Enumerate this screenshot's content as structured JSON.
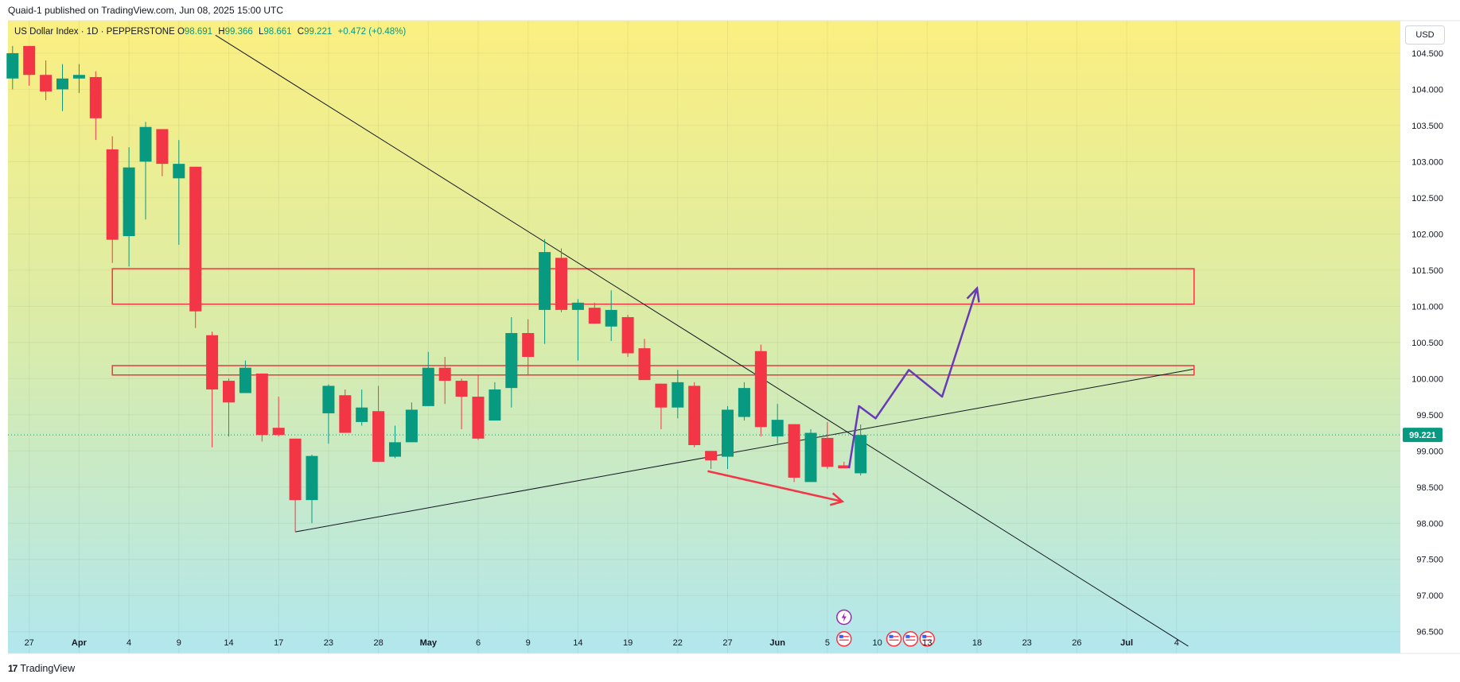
{
  "publication": "Quaid-1 published on TradingView.com, Jun 08, 2025 15:00 UTC",
  "header": {
    "symbol": "US Dollar Index · 1D · PEPPERSTONE",
    "open_label": "O",
    "open": "98.691",
    "high_label": "H",
    "high": "99.366",
    "low_label": "L",
    "low": "98.661",
    "close_label": "C",
    "close": "99.221",
    "change": "+0.472 (+0.48%)"
  },
  "currency": "USD",
  "footer": {
    "logo": "17",
    "brand": "TradingView"
  },
  "colors": {
    "up": "#089981",
    "down": "#f23645",
    "gradient_top": "#fbef80",
    "gradient_mid": "#d9ecaa",
    "gradient_bottom": "#b2e7ee",
    "zone": "#f23645",
    "projection": "#673ab7",
    "price_tag": "#089981"
  },
  "chart_data": {
    "type": "candlestick",
    "ylim": [
      96.2,
      104.95
    ],
    "y_ticks": [
      "104.500",
      "104.000",
      "103.500",
      "103.000",
      "102.500",
      "102.000",
      "101.500",
      "101.000",
      "100.500",
      "100.000",
      "99.500",
      "99.000",
      "98.500",
      "98.000",
      "97.500",
      "97.000",
      "96.500"
    ],
    "x_tick_labels": [
      {
        "i": 1,
        "label": "27"
      },
      {
        "i": 4,
        "label": "Apr"
      },
      {
        "i": 7,
        "label": "4"
      },
      {
        "i": 10,
        "label": "9"
      },
      {
        "i": 13,
        "label": "14"
      },
      {
        "i": 16,
        "label": "17"
      },
      {
        "i": 19,
        "label": "23"
      },
      {
        "i": 22,
        "label": "28"
      },
      {
        "i": 25,
        "label": "May"
      },
      {
        "i": 28,
        "label": "6"
      },
      {
        "i": 31,
        "label": "9"
      },
      {
        "i": 34,
        "label": "14"
      },
      {
        "i": 37,
        "label": "19"
      },
      {
        "i": 40,
        "label": "22"
      },
      {
        "i": 43,
        "label": "27"
      },
      {
        "i": 46,
        "label": "Jun"
      },
      {
        "i": 49,
        "label": "5"
      },
      {
        "i": 52,
        "label": "10"
      },
      {
        "i": 55,
        "label": "13"
      },
      {
        "i": 58,
        "label": "18"
      },
      {
        "i": 61,
        "label": "23"
      },
      {
        "i": 64,
        "label": "26"
      },
      {
        "i": 67,
        "label": "Jul"
      },
      {
        "i": 70,
        "label": "4"
      }
    ],
    "last_price": "99.221",
    "candles": [
      {
        "o": 104.15,
        "h": 104.6,
        "l": 104.0,
        "c": 104.5
      },
      {
        "o": 104.6,
        "h": 104.6,
        "l": 104.05,
        "c": 104.2
      },
      {
        "o": 104.2,
        "h": 104.4,
        "l": 103.85,
        "c": 103.97
      },
      {
        "o": 104.0,
        "h": 104.35,
        "l": 103.7,
        "c": 104.15
      },
      {
        "o": 104.15,
        "h": 104.35,
        "l": 103.95,
        "c": 104.2
      },
      {
        "o": 104.17,
        "h": 104.25,
        "l": 103.3,
        "c": 103.6
      },
      {
        "o": 103.17,
        "h": 103.35,
        "l": 101.6,
        "c": 101.92
      },
      {
        "o": 101.97,
        "h": 103.2,
        "l": 101.55,
        "c": 102.92
      },
      {
        "o": 103.0,
        "h": 103.55,
        "l": 102.2,
        "c": 103.48
      },
      {
        "o": 103.45,
        "h": 103.45,
        "l": 102.8,
        "c": 102.97
      },
      {
        "o": 102.77,
        "h": 103.3,
        "l": 101.85,
        "c": 102.97
      },
      {
        "o": 102.93,
        "h": 102.93,
        "l": 100.7,
        "c": 100.93
      },
      {
        "o": 100.6,
        "h": 100.65,
        "l": 99.05,
        "c": 99.85
      },
      {
        "o": 99.97,
        "h": 100.0,
        "l": 99.2,
        "c": 99.67
      },
      {
        "o": 99.8,
        "h": 100.25,
        "l": 99.8,
        "c": 100.15
      },
      {
        "o": 100.07,
        "h": 100.07,
        "l": 99.13,
        "c": 99.22
      },
      {
        "o": 99.32,
        "h": 99.75,
        "l": 99.2,
        "c": 99.22
      },
      {
        "o": 99.17,
        "h": 99.17,
        "l": 97.88,
        "c": 98.32
      },
      {
        "o": 98.32,
        "h": 98.95,
        "l": 98.0,
        "c": 98.93
      },
      {
        "o": 99.52,
        "h": 99.92,
        "l": 99.1,
        "c": 99.9
      },
      {
        "o": 99.77,
        "h": 99.85,
        "l": 99.25,
        "c": 99.25
      },
      {
        "o": 99.4,
        "h": 99.85,
        "l": 99.35,
        "c": 99.6
      },
      {
        "o": 99.55,
        "h": 99.9,
        "l": 98.85,
        "c": 98.85
      },
      {
        "o": 98.92,
        "h": 99.35,
        "l": 98.9,
        "c": 99.12
      },
      {
        "o": 99.12,
        "h": 99.67,
        "l": 99.12,
        "c": 99.57
      },
      {
        "o": 99.62,
        "h": 100.37,
        "l": 99.62,
        "c": 100.15
      },
      {
        "o": 100.15,
        "h": 100.3,
        "l": 99.65,
        "c": 99.97
      },
      {
        "o": 99.97,
        "h": 100.0,
        "l": 99.3,
        "c": 99.75
      },
      {
        "o": 99.75,
        "h": 100.05,
        "l": 99.15,
        "c": 99.17
      },
      {
        "o": 99.42,
        "h": 99.95,
        "l": 99.42,
        "c": 99.85
      },
      {
        "o": 99.87,
        "h": 100.85,
        "l": 99.6,
        "c": 100.63
      },
      {
        "o": 100.63,
        "h": 100.82,
        "l": 100.05,
        "c": 100.3
      },
      {
        "o": 100.95,
        "h": 101.93,
        "l": 100.48,
        "c": 101.75
      },
      {
        "o": 101.67,
        "h": 101.8,
        "l": 100.92,
        "c": 100.95
      },
      {
        "o": 100.95,
        "h": 101.1,
        "l": 100.25,
        "c": 101.05
      },
      {
        "o": 100.98,
        "h": 101.05,
        "l": 100.76,
        "c": 100.76
      },
      {
        "o": 100.72,
        "h": 101.22,
        "l": 100.52,
        "c": 100.95
      },
      {
        "o": 100.85,
        "h": 100.88,
        "l": 100.3,
        "c": 100.35
      },
      {
        "o": 100.42,
        "h": 100.55,
        "l": 100.0,
        "c": 99.98
      },
      {
        "o": 99.93,
        "h": 99.93,
        "l": 99.3,
        "c": 99.6
      },
      {
        "o": 99.6,
        "h": 100.12,
        "l": 99.45,
        "c": 99.95
      },
      {
        "o": 99.9,
        "h": 99.95,
        "l": 99.05,
        "c": 99.08
      },
      {
        "o": 99.0,
        "h": 99.0,
        "l": 98.75,
        "c": 98.87
      },
      {
        "o": 98.92,
        "h": 99.62,
        "l": 98.75,
        "c": 99.57
      },
      {
        "o": 99.47,
        "h": 99.95,
        "l": 99.42,
        "c": 99.87
      },
      {
        "o": 100.38,
        "h": 100.47,
        "l": 99.2,
        "c": 99.33
      },
      {
        "o": 99.2,
        "h": 99.65,
        "l": 99.1,
        "c": 99.43
      },
      {
        "o": 99.37,
        "h": 99.37,
        "l": 98.57,
        "c": 98.63
      },
      {
        "o": 98.57,
        "h": 99.3,
        "l": 98.57,
        "c": 99.25
      },
      {
        "o": 99.18,
        "h": 99.4,
        "l": 98.75,
        "c": 98.78
      },
      {
        "o": 98.8,
        "h": 98.85,
        "l": 98.77,
        "c": 98.76
      },
      {
        "o": 98.691,
        "h": 99.366,
        "l": 98.661,
        "c": 99.221
      }
    ],
    "zones": [
      {
        "x0": 6.0,
        "x1": 71.05,
        "y_top": 101.52,
        "y_bottom": 101.03
      },
      {
        "x0": 6.0,
        "x1": 71.05,
        "y_top": 100.18,
        "y_bottom": 100.05
      }
    ],
    "trend_lines": [
      {
        "x0": 12.2,
        "y0": 104.75,
        "x1": 70.7,
        "y1": 96.3
      },
      {
        "x0": 17.0,
        "y0": 97.88,
        "x1": 71.0,
        "y1": 100.13
      }
    ],
    "red_arrow": [
      {
        "x": 41.8,
        "y": 98.72
      },
      {
        "x": 49.9,
        "y": 98.3
      }
    ],
    "projection": [
      {
        "x": 50.3,
        "y": 98.76
      },
      {
        "x": 50.9,
        "y": 99.62
      },
      {
        "x": 51.9,
        "y": 99.45
      },
      {
        "x": 53.9,
        "y": 100.12
      },
      {
        "x": 55.9,
        "y": 99.75
      },
      {
        "x": 58.0,
        "y": 101.25
      }
    ],
    "event_icons": [
      {
        "x": 50.0,
        "y": 96.7,
        "kind": "lightning-icon"
      },
      {
        "x": 50.0,
        "y": 96.4,
        "kind": "us-flag-icon"
      },
      {
        "x": 53.0,
        "y": 96.4,
        "kind": "us-flag-icon"
      },
      {
        "x": 54.0,
        "y": 96.4,
        "kind": "us-flag-icon"
      },
      {
        "x": 55.0,
        "y": 96.4,
        "kind": "us-flag-icon"
      }
    ]
  }
}
